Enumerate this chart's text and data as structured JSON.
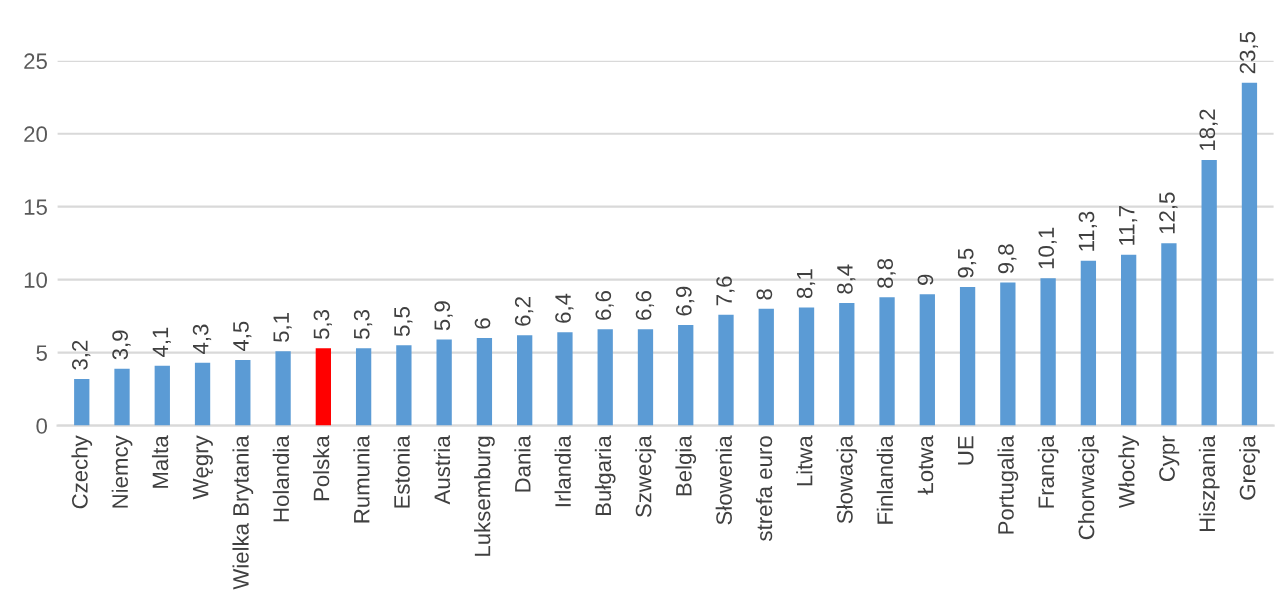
{
  "chart_data": {
    "type": "bar",
    "categories": [
      "Czechy",
      "Niemcy",
      "Malta",
      "Węgry",
      "Wielka Brytania",
      "Holandia",
      "Polska",
      "Rumunia",
      "Estonia",
      "Austria",
      "Luksemburg",
      "Dania",
      "Irlandia",
      "Bułgaria",
      "Szwecja",
      "Belgia",
      "Słowenia",
      "strefa euro",
      "Litwa",
      "Słowacja",
      "Finlandia",
      "Łotwa",
      "UE",
      "Portugalia",
      "Francja",
      "Chorwacja",
      "Włochy",
      "Cypr",
      "Hiszpania",
      "Grecja"
    ],
    "values": [
      3.2,
      3.9,
      4.1,
      4.3,
      4.5,
      5.1,
      5.3,
      5.3,
      5.5,
      5.9,
      6,
      6.2,
      6.4,
      6.6,
      6.6,
      6.9,
      7.6,
      8,
      8.1,
      8.4,
      8.8,
      9,
      9.5,
      9.8,
      10.1,
      11.3,
      11.7,
      12.5,
      18.2,
      23.5
    ],
    "value_labels": [
      "3,2",
      "3,9",
      "4,1",
      "4,3",
      "4,5",
      "5,1",
      "5,3",
      "5,3",
      "5,5",
      "5,9",
      "6",
      "6,2",
      "6,4",
      "6,6",
      "6,6",
      "6,9",
      "7,6",
      "8",
      "8,1",
      "8,4",
      "8,8",
      "9",
      "9,5",
      "9,8",
      "10,1",
      "11,3",
      "11,7",
      "12,5",
      "18,2",
      "23,5"
    ],
    "colors": [
      "#5b9bd5",
      "#5b9bd5",
      "#5b9bd5",
      "#5b9bd5",
      "#5b9bd5",
      "#5b9bd5",
      "#ff0000",
      "#5b9bd5",
      "#5b9bd5",
      "#5b9bd5",
      "#5b9bd5",
      "#5b9bd5",
      "#5b9bd5",
      "#5b9bd5",
      "#5b9bd5",
      "#5b9bd5",
      "#5b9bd5",
      "#5b9bd5",
      "#5b9bd5",
      "#5b9bd5",
      "#5b9bd5",
      "#5b9bd5",
      "#5b9bd5",
      "#5b9bd5",
      "#5b9bd5",
      "#5b9bd5",
      "#5b9bd5",
      "#5b9bd5",
      "#5b9bd5",
      "#5b9bd5"
    ],
    "ylim": [
      0,
      25
    ],
    "yticks": [
      0,
      5,
      10,
      15,
      20,
      25
    ],
    "grid": "y",
    "legend": false
  }
}
